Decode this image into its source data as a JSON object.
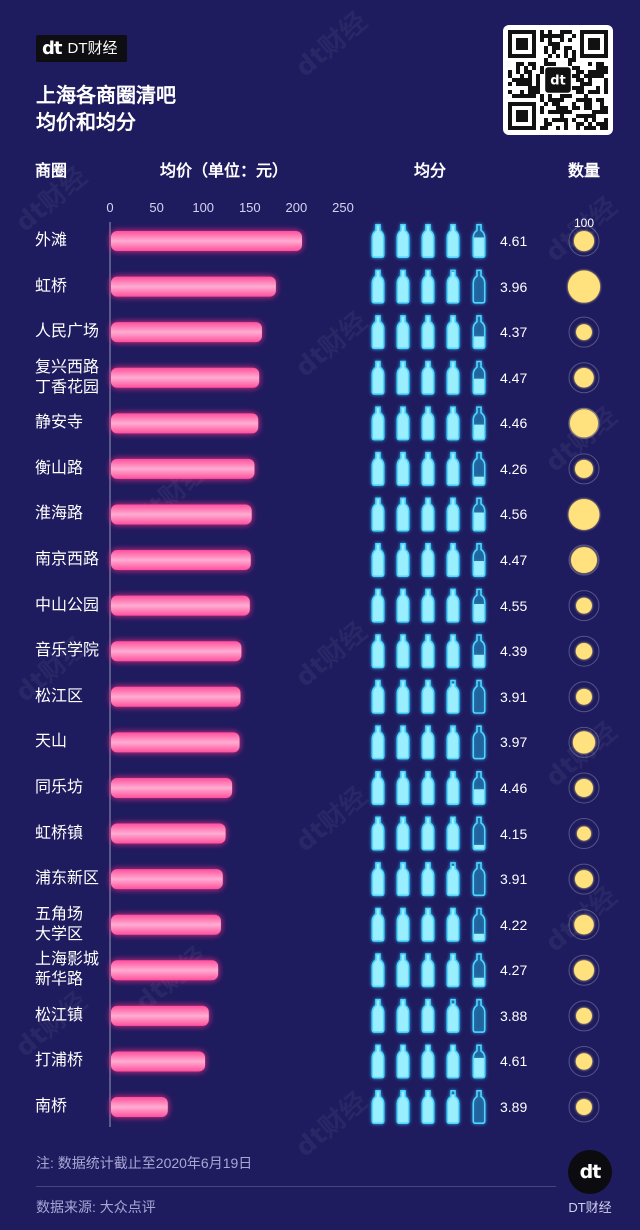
{
  "header": {
    "logo_mark": "dt",
    "logo_text": "DT财经",
    "qr_logo": "dt"
  },
  "watermark": "dt财经",
  "colors": {
    "background": "#1e1b5e",
    "text": "#ffffff",
    "muted_text": "#aaa7d6",
    "bar": "#ff4f9c",
    "bar_highlight": "#ffadd2",
    "bottle_outline": "#4fd6ff",
    "bottle_fill": "#9aefff",
    "bottle_empty": "#1c2f7a",
    "count": "#ffe27d"
  },
  "chart_data": {
    "type": "bar",
    "title": [
      "上海各商圈清吧",
      "均价和均分"
    ],
    "category_label": "商圈",
    "xticks": [
      0,
      50,
      100,
      150,
      200,
      250
    ],
    "xlim": [
      0,
      250
    ],
    "grid": false,
    "categories": [
      "外滩",
      "虹桥",
      "人民广场",
      "复兴西路\n丁香花园",
      "静安寺",
      "衡山路",
      "淮海路",
      "南京西路",
      "中山公园",
      "音乐学院",
      "松江区",
      "天山",
      "同乐坊",
      "虹桥镇",
      "浦东新区",
      "五角场\n大学区",
      "上海影城\n新华路",
      "松江镇",
      "打浦桥",
      "南桥"
    ],
    "series": [
      {
        "name": "均价（单位：元）",
        "values": [
          206,
          178,
          163,
          160,
          159,
          155,
          152,
          151,
          150,
          141,
          140,
          139,
          131,
          124,
          121,
          119,
          116,
          106,
          102,
          62
        ]
      },
      {
        "name": "均分",
        "values": [
          4.61,
          3.96,
          4.37,
          4.47,
          4.46,
          4.26,
          4.56,
          4.47,
          4.55,
          4.39,
          3.91,
          3.97,
          4.46,
          4.15,
          3.91,
          4.22,
          4.27,
          3.88,
          4.61,
          3.89
        ]
      },
      {
        "name": "数量",
        "values": [
          45,
          115,
          28,
          42,
          88,
          36,
          105,
          75,
          28,
          30,
          28,
          55,
          36,
          22,
          36,
          42,
          45,
          28,
          30,
          28
        ]
      }
    ],
    "count_legend": "100"
  },
  "footer": {
    "note": "注: 数据统计截止至2020年6月19日",
    "source": "数据来源: 大众点评",
    "logo_mark": "dt",
    "logo_text": "DT财经"
  }
}
